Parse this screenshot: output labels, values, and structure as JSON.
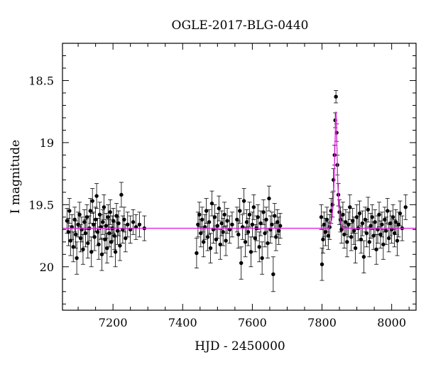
{
  "chart_data": {
    "type": "scatter",
    "title": "OGLE-2017-BLG-0440",
    "xlabel": "HJD - 2450000",
    "ylabel": "I magnitude",
    "xlim": [
      7055,
      8070
    ],
    "ylim": [
      20.35,
      18.2
    ],
    "y_inverted": true,
    "grid": false,
    "x_ticks": [
      7200,
      7400,
      7600,
      7800,
      8000
    ],
    "x_tick_labels": [
      "7200",
      "7400",
      "7600",
      "7800",
      "8000"
    ],
    "y_ticks": [
      18.5,
      19,
      19.5,
      20
    ],
    "y_tick_labels": [
      "18.5",
      "19",
      "19.5",
      "20"
    ],
    "colors": {
      "data": "#000000",
      "model": "#e020e0"
    },
    "series": [
      {
        "type": "scatter",
        "error_bars": true,
        "points": [
          {
            "x": 7068,
            "y": 19.63,
            "err": 0.1
          },
          {
            "x": 7072,
            "y": 19.72,
            "err": 0.11
          },
          {
            "x": 7075,
            "y": 19.55,
            "err": 0.1
          },
          {
            "x": 7078,
            "y": 19.79,
            "err": 0.12
          },
          {
            "x": 7082,
            "y": 19.68,
            "err": 0.1
          },
          {
            "x": 7086,
            "y": 19.84,
            "err": 0.12
          },
          {
            "x": 7090,
            "y": 19.62,
            "err": 0.1
          },
          {
            "x": 7093,
            "y": 19.74,
            "err": 0.11
          },
          {
            "x": 7096,
            "y": 19.93,
            "err": 0.13
          },
          {
            "x": 7100,
            "y": 19.66,
            "err": 0.1
          },
          {
            "x": 7104,
            "y": 19.58,
            "err": 0.1
          },
          {
            "x": 7107,
            "y": 19.77,
            "err": 0.11
          },
          {
            "x": 7110,
            "y": 19.7,
            "err": 0.1
          },
          {
            "x": 7114,
            "y": 19.86,
            "err": 0.12
          },
          {
            "x": 7118,
            "y": 19.64,
            "err": 0.1
          },
          {
            "x": 7121,
            "y": 19.73,
            "err": 0.11
          },
          {
            "x": 7125,
            "y": 19.6,
            "err": 0.1
          },
          {
            "x": 7128,
            "y": 19.81,
            "err": 0.12
          },
          {
            "x": 7132,
            "y": 19.69,
            "err": 0.1
          },
          {
            "x": 7135,
            "y": 19.55,
            "err": 0.1
          },
          {
            "x": 7138,
            "y": 19.88,
            "err": 0.12
          },
          {
            "x": 7141,
            "y": 19.47,
            "err": 0.1
          },
          {
            "x": 7144,
            "y": 19.66,
            "err": 0.1
          },
          {
            "x": 7147,
            "y": 19.76,
            "err": 0.11
          },
          {
            "x": 7150,
            "y": 19.62,
            "err": 0.1
          },
          {
            "x": 7153,
            "y": 19.43,
            "err": 0.1
          },
          {
            "x": 7156,
            "y": 19.72,
            "err": 0.11
          },
          {
            "x": 7159,
            "y": 19.82,
            "err": 0.12
          },
          {
            "x": 7162,
            "y": 19.58,
            "err": 0.1
          },
          {
            "x": 7165,
            "y": 19.68,
            "err": 0.1
          },
          {
            "x": 7168,
            "y": 19.9,
            "err": 0.13
          },
          {
            "x": 7171,
            "y": 19.64,
            "err": 0.1
          },
          {
            "x": 7174,
            "y": 19.52,
            "err": 0.1
          },
          {
            "x": 7177,
            "y": 19.78,
            "err": 0.11
          },
          {
            "x": 7180,
            "y": 19.67,
            "err": 0.1
          },
          {
            "x": 7183,
            "y": 19.85,
            "err": 0.12
          },
          {
            "x": 7186,
            "y": 19.6,
            "err": 0.1
          },
          {
            "x": 7189,
            "y": 19.73,
            "err": 0.11
          },
          {
            "x": 7192,
            "y": 19.56,
            "err": 0.1
          },
          {
            "x": 7195,
            "y": 19.8,
            "err": 0.12
          },
          {
            "x": 7198,
            "y": 19.69,
            "err": 0.1
          },
          {
            "x": 7201,
            "y": 19.63,
            "err": 0.1
          },
          {
            "x": 7204,
            "y": 19.75,
            "err": 0.11
          },
          {
            "x": 7207,
            "y": 19.88,
            "err": 0.12
          },
          {
            "x": 7210,
            "y": 19.59,
            "err": 0.1
          },
          {
            "x": 7213,
            "y": 19.71,
            "err": 0.11
          },
          {
            "x": 7216,
            "y": 19.65,
            "err": 0.1
          },
          {
            "x": 7220,
            "y": 19.83,
            "err": 0.12
          },
          {
            "x": 7224,
            "y": 19.42,
            "err": 0.1
          },
          {
            "x": 7228,
            "y": 19.7,
            "err": 0.11
          },
          {
            "x": 7232,
            "y": 19.62,
            "err": 0.1
          },
          {
            "x": 7236,
            "y": 19.77,
            "err": 0.11
          },
          {
            "x": 7242,
            "y": 19.66,
            "err": 0.1
          },
          {
            "x": 7250,
            "y": 19.7,
            "err": 0.11
          },
          {
            "x": 7258,
            "y": 19.64,
            "err": 0.1
          },
          {
            "x": 7266,
            "y": 19.68,
            "err": 0.1
          },
          {
            "x": 7276,
            "y": 19.66,
            "err": 0.1
          },
          {
            "x": 7290,
            "y": 19.69,
            "err": 0.1
          },
          {
            "x": 7440,
            "y": 19.89,
            "err": 0.12
          },
          {
            "x": 7444,
            "y": 19.66,
            "err": 0.1
          },
          {
            "x": 7448,
            "y": 19.58,
            "err": 0.1
          },
          {
            "x": 7452,
            "y": 19.73,
            "err": 0.11
          },
          {
            "x": 7456,
            "y": 19.62,
            "err": 0.1
          },
          {
            "x": 7460,
            "y": 19.8,
            "err": 0.12
          },
          {
            "x": 7464,
            "y": 19.68,
            "err": 0.1
          },
          {
            "x": 7468,
            "y": 19.55,
            "err": 0.1
          },
          {
            "x": 7472,
            "y": 19.76,
            "err": 0.11
          },
          {
            "x": 7476,
            "y": 19.64,
            "err": 0.1
          },
          {
            "x": 7480,
            "y": 19.85,
            "err": 0.12
          },
          {
            "x": 7484,
            "y": 19.49,
            "err": 0.1
          },
          {
            "x": 7488,
            "y": 19.7,
            "err": 0.11
          },
          {
            "x": 7492,
            "y": 19.6,
            "err": 0.1
          },
          {
            "x": 7496,
            "y": 19.78,
            "err": 0.11
          },
          {
            "x": 7500,
            "y": 19.67,
            "err": 0.1
          },
          {
            "x": 7504,
            "y": 19.53,
            "err": 0.1
          },
          {
            "x": 7508,
            "y": 19.82,
            "err": 0.12
          },
          {
            "x": 7512,
            "y": 19.65,
            "err": 0.1
          },
          {
            "x": 7516,
            "y": 19.72,
            "err": 0.11
          },
          {
            "x": 7520,
            "y": 19.58,
            "err": 0.1
          },
          {
            "x": 7524,
            "y": 19.79,
            "err": 0.12
          },
          {
            "x": 7528,
            "y": 19.63,
            "err": 0.1
          },
          {
            "x": 7535,
            "y": 19.7,
            "err": 0.11
          },
          {
            "x": 7542,
            "y": 19.66,
            "err": 0.1
          },
          {
            "x": 7556,
            "y": 19.62,
            "err": 0.1
          },
          {
            "x": 7560,
            "y": 19.74,
            "err": 0.11
          },
          {
            "x": 7564,
            "y": 19.55,
            "err": 0.1
          },
          {
            "x": 7568,
            "y": 19.97,
            "err": 0.13
          },
          {
            "x": 7572,
            "y": 19.68,
            "err": 0.1
          },
          {
            "x": 7576,
            "y": 19.47,
            "err": 0.1
          },
          {
            "x": 7580,
            "y": 19.8,
            "err": 0.12
          },
          {
            "x": 7584,
            "y": 19.64,
            "err": 0.1
          },
          {
            "x": 7588,
            "y": 19.72,
            "err": 0.11
          },
          {
            "x": 7592,
            "y": 19.58,
            "err": 0.1
          },
          {
            "x": 7596,
            "y": 19.88,
            "err": 0.12
          },
          {
            "x": 7600,
            "y": 19.66,
            "err": 0.1
          },
          {
            "x": 7604,
            "y": 19.52,
            "err": 0.1
          },
          {
            "x": 7608,
            "y": 19.77,
            "err": 0.11
          },
          {
            "x": 7612,
            "y": 19.69,
            "err": 0.1
          },
          {
            "x": 7616,
            "y": 19.6,
            "err": 0.1
          },
          {
            "x": 7620,
            "y": 19.84,
            "err": 0.12
          },
          {
            "x": 7624,
            "y": 19.65,
            "err": 0.1
          },
          {
            "x": 7628,
            "y": 19.93,
            "err": 0.13
          },
          {
            "x": 7632,
            "y": 19.56,
            "err": 0.1
          },
          {
            "x": 7636,
            "y": 19.73,
            "err": 0.11
          },
          {
            "x": 7640,
            "y": 19.62,
            "err": 0.1
          },
          {
            "x": 7644,
            "y": 19.81,
            "err": 0.12
          },
          {
            "x": 7648,
            "y": 19.45,
            "err": 0.1
          },
          {
            "x": 7652,
            "y": 19.7,
            "err": 0.11
          },
          {
            "x": 7656,
            "y": 19.66,
            "err": 0.1
          },
          {
            "x": 7660,
            "y": 20.06,
            "err": 0.14
          },
          {
            "x": 7664,
            "y": 19.59,
            "err": 0.1
          },
          {
            "x": 7668,
            "y": 19.76,
            "err": 0.11
          },
          {
            "x": 7672,
            "y": 19.64,
            "err": 0.1
          },
          {
            "x": 7676,
            "y": 19.71,
            "err": 0.11
          },
          {
            "x": 7680,
            "y": 19.67,
            "err": 0.1
          },
          {
            "x": 7798,
            "y": 19.6,
            "err": 0.1
          },
          {
            "x": 7800,
            "y": 19.98,
            "err": 0.13
          },
          {
            "x": 7803,
            "y": 19.78,
            "err": 0.11
          },
          {
            "x": 7806,
            "y": 19.66,
            "err": 0.1
          },
          {
            "x": 7810,
            "y": 19.72,
            "err": 0.11
          },
          {
            "x": 7814,
            "y": 19.62,
            "err": 0.1
          },
          {
            "x": 7818,
            "y": 19.75,
            "err": 0.11
          },
          {
            "x": 7822,
            "y": 19.68,
            "err": 0.1
          },
          {
            "x": 7826,
            "y": 19.55,
            "err": 0.1
          },
          {
            "x": 7830,
            "y": 19.5,
            "err": 0.1
          },
          {
            "x": 7833,
            "y": 19.3,
            "err": 0.09
          },
          {
            "x": 7836,
            "y": 19.1,
            "err": 0.08
          },
          {
            "x": 7838,
            "y": 18.82,
            "err": 0.06
          },
          {
            "x": 7840,
            "y": 18.63,
            "err": 0.05
          },
          {
            "x": 7842,
            "y": 18.92,
            "err": 0.07
          },
          {
            "x": 7844,
            "y": 19.18,
            "err": 0.08
          },
          {
            "x": 7847,
            "y": 19.42,
            "err": 0.09
          },
          {
            "x": 7850,
            "y": 19.56,
            "err": 0.1
          },
          {
            "x": 7853,
            "y": 19.62,
            "err": 0.1
          },
          {
            "x": 7856,
            "y": 19.7,
            "err": 0.11
          },
          {
            "x": 7860,
            "y": 19.58,
            "err": 0.1
          },
          {
            "x": 7864,
            "y": 19.74,
            "err": 0.11
          },
          {
            "x": 7868,
            "y": 19.64,
            "err": 0.1
          },
          {
            "x": 7872,
            "y": 19.8,
            "err": 0.12
          },
          {
            "x": 7876,
            "y": 19.66,
            "err": 0.1
          },
          {
            "x": 7880,
            "y": 19.52,
            "err": 0.1
          },
          {
            "x": 7884,
            "y": 19.76,
            "err": 0.11
          },
          {
            "x": 7888,
            "y": 19.63,
            "err": 0.1
          },
          {
            "x": 7892,
            "y": 19.71,
            "err": 0.11
          },
          {
            "x": 7896,
            "y": 19.85,
            "err": 0.12
          },
          {
            "x": 7900,
            "y": 19.6,
            "err": 0.1
          },
          {
            "x": 7904,
            "y": 19.69,
            "err": 0.1
          },
          {
            "x": 7908,
            "y": 19.57,
            "err": 0.1
          },
          {
            "x": 7912,
            "y": 19.78,
            "err": 0.11
          },
          {
            "x": 7916,
            "y": 19.65,
            "err": 0.1
          },
          {
            "x": 7920,
            "y": 19.92,
            "err": 0.13
          },
          {
            "x": 7924,
            "y": 19.62,
            "err": 0.1
          },
          {
            "x": 7928,
            "y": 19.73,
            "err": 0.11
          },
          {
            "x": 7932,
            "y": 19.54,
            "err": 0.1
          },
          {
            "x": 7936,
            "y": 19.8,
            "err": 0.12
          },
          {
            "x": 7940,
            "y": 19.67,
            "err": 0.1
          },
          {
            "x": 7944,
            "y": 19.6,
            "err": 0.1
          },
          {
            "x": 7948,
            "y": 19.75,
            "err": 0.11
          },
          {
            "x": 7952,
            "y": 19.64,
            "err": 0.1
          },
          {
            "x": 7956,
            "y": 19.86,
            "err": 0.12
          },
          {
            "x": 7960,
            "y": 19.7,
            "err": 0.11
          },
          {
            "x": 7964,
            "y": 19.58,
            "err": 0.1
          },
          {
            "x": 7968,
            "y": 19.74,
            "err": 0.11
          },
          {
            "x": 7972,
            "y": 19.66,
            "err": 0.1
          },
          {
            "x": 7976,
            "y": 19.82,
            "err": 0.12
          },
          {
            "x": 7980,
            "y": 19.62,
            "err": 0.1
          },
          {
            "x": 7984,
            "y": 19.71,
            "err": 0.11
          },
          {
            "x": 7988,
            "y": 19.55,
            "err": 0.1
          },
          {
            "x": 7992,
            "y": 19.77,
            "err": 0.11
          },
          {
            "x": 7996,
            "y": 19.65,
            "err": 0.1
          },
          {
            "x": 8000,
            "y": 19.7,
            "err": 0.11
          },
          {
            "x": 8004,
            "y": 19.6,
            "err": 0.1
          },
          {
            "x": 8008,
            "y": 19.73,
            "err": 0.11
          },
          {
            "x": 8012,
            "y": 19.64,
            "err": 0.1
          },
          {
            "x": 8016,
            "y": 19.79,
            "err": 0.12
          },
          {
            "x": 8020,
            "y": 19.66,
            "err": 0.1
          },
          {
            "x": 8024,
            "y": 19.57,
            "err": 0.1
          },
          {
            "x": 8030,
            "y": 19.69,
            "err": 0.1
          },
          {
            "x": 8040,
            "y": 19.52,
            "err": 0.1
          }
        ]
      },
      {
        "type": "line",
        "model": true,
        "baseline": 19.69,
        "peak_x": 7840,
        "peak_y": 18.75,
        "points": [
          {
            "x": 7055,
            "y": 19.69
          },
          {
            "x": 7820,
            "y": 19.69
          },
          {
            "x": 7828,
            "y": 19.62
          },
          {
            "x": 7832,
            "y": 19.5
          },
          {
            "x": 7835,
            "y": 19.3
          },
          {
            "x": 7837,
            "y": 19.05
          },
          {
            "x": 7839,
            "y": 18.8
          },
          {
            "x": 7840,
            "y": 18.75
          },
          {
            "x": 7841,
            "y": 18.8
          },
          {
            "x": 7843,
            "y": 19.05
          },
          {
            "x": 7845,
            "y": 19.3
          },
          {
            "x": 7848,
            "y": 19.5
          },
          {
            "x": 7852,
            "y": 19.62
          },
          {
            "x": 7860,
            "y": 19.69
          },
          {
            "x": 8070,
            "y": 19.69
          }
        ]
      }
    ]
  }
}
